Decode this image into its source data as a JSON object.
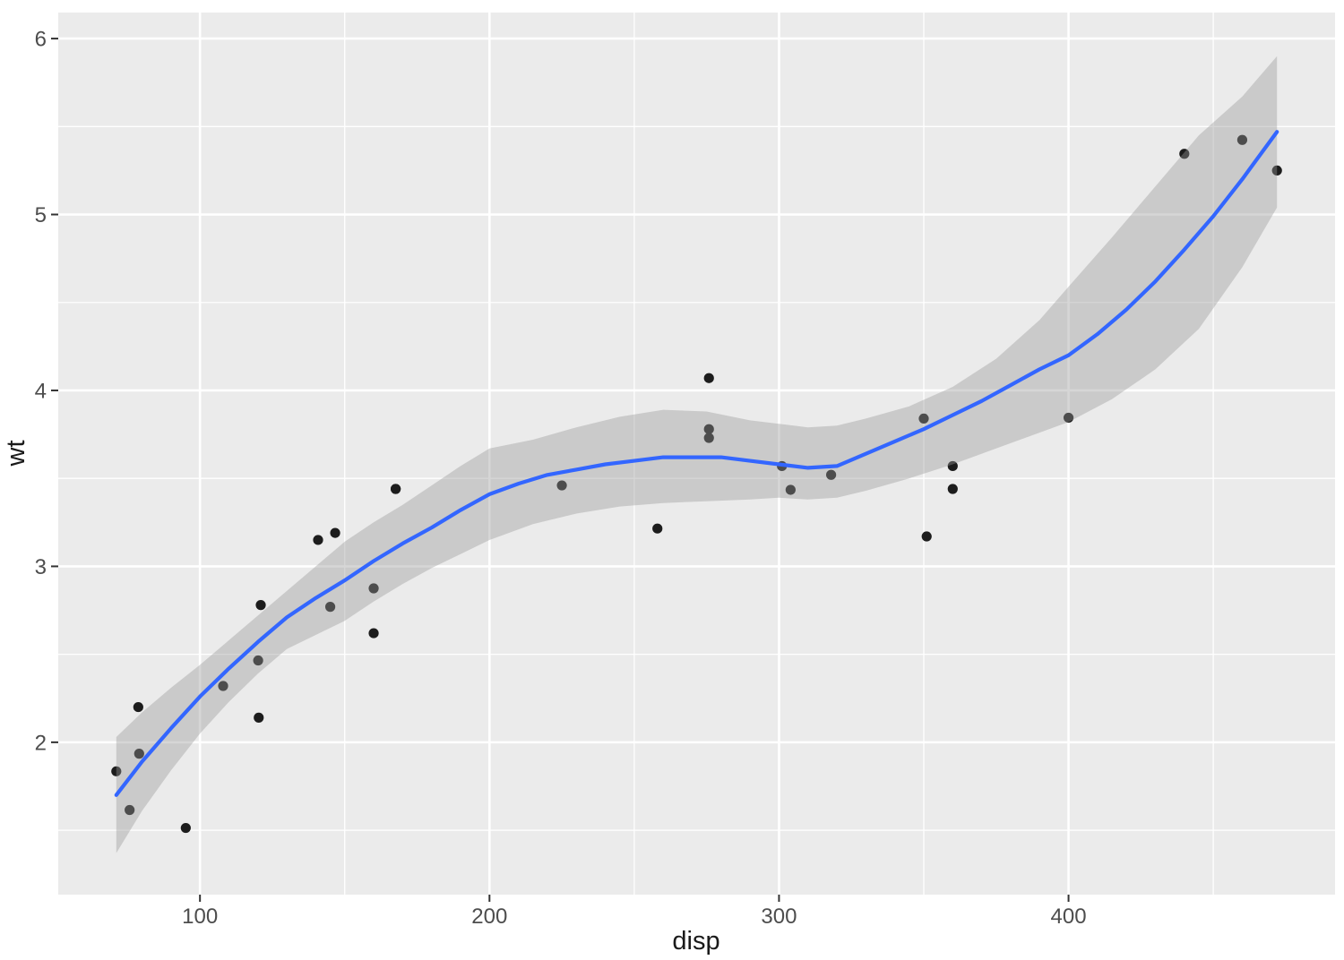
{
  "chart_data": {
    "type": "scatter",
    "title": "",
    "xlabel": "disp",
    "ylabel": "wt",
    "grid": "on",
    "legend": "none",
    "x_axis": {
      "ticks": [
        100,
        200,
        300,
        400
      ],
      "tick_labels": [
        "100",
        "200",
        "300",
        "400"
      ],
      "minor_ticks": [
        150,
        250,
        350,
        450
      ],
      "range": [
        51.05,
        492.05
      ]
    },
    "y_axis": {
      "ticks": [
        2,
        3,
        4,
        5,
        6
      ],
      "tick_labels": [
        "2",
        "3",
        "4",
        "5",
        "6"
      ],
      "minor_ticks": [
        1.5,
        2.5,
        3.5,
        4.5,
        5.5
      ],
      "range": [
        1.134,
        6.148
      ]
    },
    "points": [
      [
        160.0,
        2.62
      ],
      [
        160.0,
        2.875
      ],
      [
        108.0,
        2.32
      ],
      [
        258.0,
        3.215
      ],
      [
        360.0,
        3.44
      ],
      [
        225.0,
        3.46
      ],
      [
        360.0,
        3.57
      ],
      [
        146.7,
        3.19
      ],
      [
        140.8,
        3.15
      ],
      [
        167.6,
        3.44
      ],
      [
        167.6,
        3.44
      ],
      [
        275.8,
        4.07
      ],
      [
        275.8,
        3.73
      ],
      [
        275.8,
        3.78
      ],
      [
        472.0,
        5.25
      ],
      [
        460.0,
        5.424
      ],
      [
        440.0,
        5.345
      ],
      [
        78.7,
        2.2
      ],
      [
        75.7,
        1.615
      ],
      [
        71.1,
        1.835
      ],
      [
        120.1,
        2.465
      ],
      [
        318.0,
        3.52
      ],
      [
        304.0,
        3.435
      ],
      [
        350.0,
        3.84
      ],
      [
        400.0,
        3.845
      ],
      [
        79.0,
        1.935
      ],
      [
        120.3,
        2.14
      ],
      [
        95.1,
        1.513
      ],
      [
        351.0,
        3.17
      ],
      [
        145.0,
        2.77
      ],
      [
        301.0,
        3.57
      ],
      [
        121.0,
        2.78
      ]
    ],
    "smooth_line": {
      "x": [
        71.1,
        80,
        90,
        100,
        110,
        120,
        130,
        140,
        150,
        160,
        170,
        180,
        190,
        200,
        210,
        220,
        230,
        240,
        250,
        260,
        270,
        280,
        290,
        300,
        310,
        320,
        330,
        340,
        350,
        360,
        370,
        380,
        390,
        400,
        410,
        420,
        430,
        440,
        450,
        460,
        472
      ],
      "y": [
        1.7,
        1.89,
        2.08,
        2.26,
        2.42,
        2.57,
        2.71,
        2.82,
        2.92,
        3.03,
        3.13,
        3.22,
        3.32,
        3.41,
        3.47,
        3.52,
        3.55,
        3.58,
        3.6,
        3.62,
        3.62,
        3.62,
        3.6,
        3.58,
        3.56,
        3.57,
        3.64,
        3.71,
        3.78,
        3.86,
        3.94,
        4.03,
        4.12,
        4.2,
        4.32,
        4.46,
        4.62,
        4.8,
        4.99,
        5.2,
        5.47
      ]
    },
    "ribbon": {
      "x": [
        71.1,
        80,
        90,
        100,
        110,
        120,
        130,
        140,
        150,
        160,
        170,
        180,
        190,
        200,
        215,
        230,
        245,
        260,
        275,
        290,
        300,
        310,
        320,
        330,
        345,
        360,
        375,
        390,
        400,
        415,
        430,
        445,
        460,
        472
      ],
      "ymax": [
        2.03,
        2.17,
        2.31,
        2.44,
        2.58,
        2.72,
        2.86,
        3.0,
        3.14,
        3.25,
        3.35,
        3.46,
        3.57,
        3.67,
        3.72,
        3.79,
        3.85,
        3.89,
        3.88,
        3.83,
        3.81,
        3.79,
        3.8,
        3.84,
        3.91,
        4.02,
        4.18,
        4.4,
        4.59,
        4.87,
        5.16,
        5.45,
        5.67,
        5.9
      ],
      "ymin": [
        1.37,
        1.61,
        1.84,
        2.05,
        2.23,
        2.39,
        2.53,
        2.61,
        2.69,
        2.8,
        2.9,
        2.99,
        3.07,
        3.15,
        3.24,
        3.3,
        3.34,
        3.36,
        3.37,
        3.38,
        3.39,
        3.38,
        3.39,
        3.43,
        3.5,
        3.58,
        3.67,
        3.76,
        3.82,
        3.95,
        4.12,
        4.35,
        4.7,
        5.04
      ]
    },
    "colors": {
      "background": "#FFFFFF",
      "panel": "#EBEBEB",
      "grid": "#FFFFFF",
      "point": "#1C1C1C",
      "smooth_line": "#3366FF",
      "ribbon_fill": "rgba(153,153,153,0.40)",
      "tick_mark": "#333333",
      "tick_label": "#4D4D4D",
      "axis_title": "#1A1A1A"
    }
  }
}
